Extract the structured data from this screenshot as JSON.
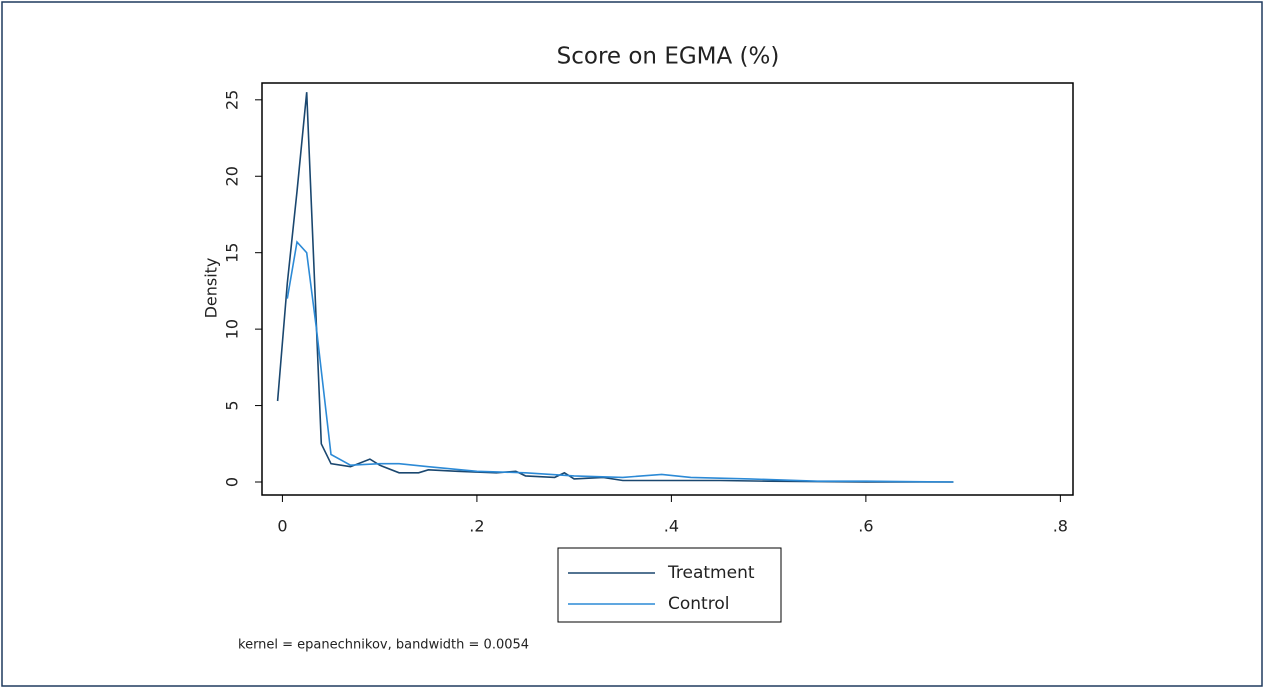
{
  "chart_data": {
    "type": "line",
    "title": "Score on EGMA (%)",
    "y_label": "Density",
    "note": "kernel = epanechnikov, bandwidth = 0.0054",
    "xlim": [
      -0.021,
      0.813
    ],
    "ylim": [
      -0.85,
      26.1
    ],
    "xticks": [
      0,
      {
        "value": 0.2,
        "label": ".2"
      },
      {
        "value": 0.4,
        "label": ".4"
      },
      {
        "value": 0.6,
        "label": ".6"
      },
      {
        "value": 0.8,
        "label": ".8"
      }
    ],
    "yticks": [
      0,
      5,
      10,
      15,
      20,
      25
    ],
    "grid": false,
    "legend": "bottom",
    "series": [
      {
        "name": "Treatment",
        "color": "#1a476f",
        "x": [
          -0.005,
          0.005,
          0.015,
          0.025,
          0.04,
          0.05,
          0.07,
          0.09,
          0.1,
          0.12,
          0.14,
          0.15,
          0.18,
          0.22,
          0.24,
          0.25,
          0.28,
          0.29,
          0.3,
          0.33,
          0.35,
          0.4,
          0.45,
          0.5,
          0.6,
          0.69
        ],
        "values": [
          5.3,
          13,
          19,
          25.5,
          2.5,
          1.2,
          1.0,
          1.5,
          1.1,
          0.6,
          0.6,
          0.8,
          0.7,
          0.6,
          0.7,
          0.4,
          0.3,
          0.6,
          0.2,
          0.3,
          0.1,
          0.1,
          0.1,
          0.05,
          0,
          0
        ]
      },
      {
        "name": "Control",
        "color": "#2c8ad6",
        "x": [
          0.005,
          0.015,
          0.025,
          0.035,
          0.05,
          0.07,
          0.1,
          0.12,
          0.15,
          0.2,
          0.25,
          0.3,
          0.35,
          0.39,
          0.42,
          0.48,
          0.55,
          0.6,
          0.69
        ],
        "values": [
          12,
          15.7,
          15,
          10,
          1.8,
          1.1,
          1.2,
          1.2,
          1.0,
          0.7,
          0.6,
          0.4,
          0.3,
          0.5,
          0.3,
          0.2,
          0.05,
          0.05,
          0
        ]
      }
    ]
  }
}
